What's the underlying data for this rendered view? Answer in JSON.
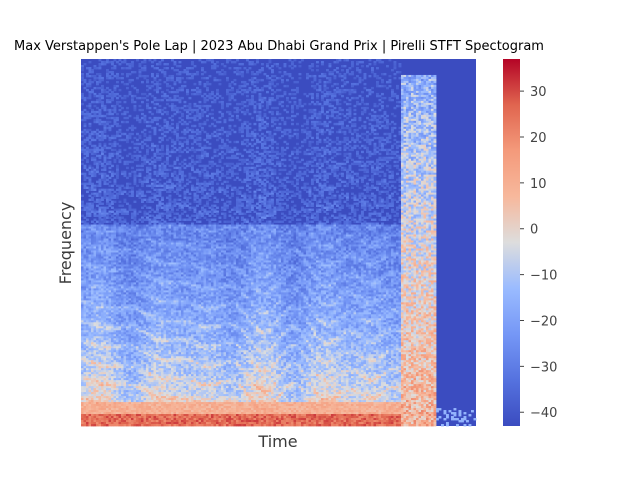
{
  "chart_data": {
    "type": "heatmap",
    "title": "Max Verstappen's Pole Lap | 2023 Abu Dhabi Grand Prix | Pirelli STFT Spectogram",
    "xlabel": "Time",
    "ylabel": "Frequency",
    "x_ticks": [],
    "y_ticks": [],
    "colormap": "coolwarm",
    "colorbar": {
      "vmin": -43,
      "vmax": 37,
      "ticks": [
        30,
        20,
        10,
        0,
        -10,
        -20,
        -30,
        -40
      ]
    },
    "colors": {
      "low": "#3b4cc0",
      "mid": "#dddddd",
      "high": "#b40426"
    }
  }
}
